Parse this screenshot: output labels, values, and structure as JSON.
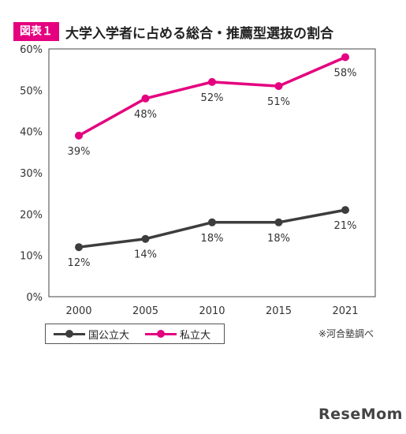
{
  "figure": {
    "badge": "図表１",
    "title": "大学入学者に占める総合・推薦型選抜の割合",
    "source_note": "※河合塾調べ",
    "logo": "ReseMom"
  },
  "colors": {
    "national_public": "#3d3d3d",
    "private": "#e4007f",
    "badge": "#e4007f"
  },
  "chart_data": {
    "type": "line",
    "categories": [
      "2000",
      "2005",
      "2010",
      "2015",
      "2021"
    ],
    "y_ticks": [
      "0%",
      "10%",
      "20%",
      "30%",
      "40%",
      "50%",
      "60%"
    ],
    "ylim": [
      0,
      60
    ],
    "grid": false,
    "legend_position": "bottom-left",
    "series": [
      {
        "name": "国公立大",
        "color": "#3d3d3d",
        "values": [
          12,
          14,
          18,
          18,
          21
        ],
        "labels": [
          "12%",
          "14%",
          "18%",
          "18%",
          "21%"
        ],
        "label_side": "below"
      },
      {
        "name": "私立大",
        "color": "#e4007f",
        "values": [
          39,
          48,
          52,
          51,
          58
        ],
        "labels": [
          "39%",
          "48%",
          "52%",
          "51%",
          "58%"
        ],
        "label_side": "below"
      }
    ]
  }
}
